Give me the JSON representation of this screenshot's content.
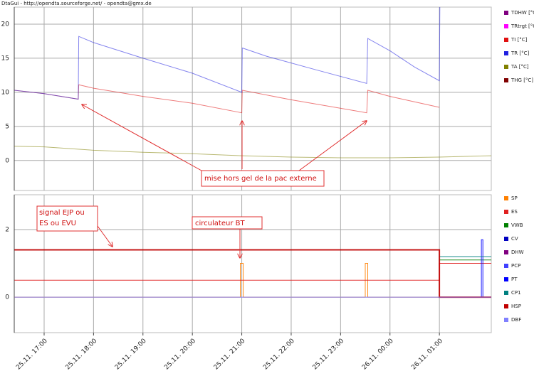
{
  "window_title": "DtaGui - http://opendta.sourceforge.net/ - opendta@gmx.de",
  "chart_data": [
    {
      "type": "line",
      "xlim": [
        16.395,
        26.05
      ],
      "xticks": [
        17,
        18,
        19,
        20,
        21,
        22,
        23,
        24,
        25
      ],
      "ylim": [
        -4.4,
        22.5
      ],
      "yticks": [
        0,
        5,
        10,
        15,
        20
      ],
      "grid": true,
      "series": [
        {
          "name": "TDHW [°C]",
          "color": "#800080",
          "x": [],
          "values": []
        },
        {
          "name": "TRtrgt [°C]",
          "color": "#ff00ff",
          "x": [],
          "values": []
        },
        {
          "name": "TI [°C]",
          "color": "#e01010",
          "x": [
            16.4,
            17,
            17.69,
            17.7,
            18,
            19,
            20,
            21,
            21.01,
            22,
            23.53,
            23.55,
            24,
            25
          ],
          "values": [
            10.3,
            9.8,
            9.0,
            11.1,
            10.6,
            9.4,
            8.4,
            7.0,
            10.3,
            8.9,
            7.0,
            10.3,
            9.4,
            7.8
          ]
        },
        {
          "name": "TR [°C]",
          "color": "#2020e0",
          "x": [
            16.4,
            17,
            17.69,
            17.7,
            18,
            19,
            20,
            21,
            21.01,
            21.5,
            22.5,
            23.53,
            23.55,
            24,
            24.5,
            25,
            25.01
          ],
          "values": [
            10.3,
            9.8,
            9.0,
            18.2,
            17.3,
            15.0,
            12.8,
            10.0,
            16.5,
            15.3,
            13.3,
            11.3,
            17.9,
            16.1,
            13.7,
            11.7,
            23
          ]
        },
        {
          "name": "TA [°C]",
          "color": "#808000",
          "x": [
            16.4,
            17,
            18,
            19,
            20,
            21,
            22,
            23,
            24,
            25,
            26.05
          ],
          "values": [
            2.1,
            2.0,
            1.5,
            1.2,
            1.0,
            0.7,
            0.5,
            0.4,
            0.4,
            0.5,
            0.7
          ]
        },
        {
          "name": "THG [°C]",
          "color": "#800000",
          "x": [],
          "values": []
        }
      ],
      "annotations": [
        {
          "text": "mise hors gel de la pac externe"
        }
      ]
    },
    {
      "type": "line",
      "xlim": [
        16.395,
        26.05
      ],
      "xticks": [
        {
          "value": 17,
          "label": "25.11. 17:00"
        },
        {
          "value": 18,
          "label": "25.11. 18:00"
        },
        {
          "value": 19,
          "label": "25.11. 19:00"
        },
        {
          "value": 20,
          "label": "25.11. 20:00"
        },
        {
          "value": 21,
          "label": "25.11. 21:00"
        },
        {
          "value": 22,
          "label": "25.11. 22:00"
        },
        {
          "value": 23,
          "label": "25.11. 23:00"
        },
        {
          "value": 24,
          "label": "26.11. 00:00"
        },
        {
          "value": 25,
          "label": "26.11. 01:00"
        }
      ],
      "ylim": [
        -1.05,
        3.03
      ],
      "yticks": [
        0,
        2
      ],
      "grid": true,
      "series": [
        {
          "name": "SP",
          "color": "#ff8000",
          "x": [
            16.4,
            20.97,
            20.97,
            21.03,
            21.03,
            23.5,
            23.5,
            23.55,
            23.55,
            26.05
          ],
          "values": [
            0,
            0,
            1,
            1,
            0,
            0,
            1,
            1,
            0,
            0
          ]
        },
        {
          "name": "ES",
          "color": "#e02020",
          "x": [
            16.4,
            25.0,
            25.0,
            26.05
          ],
          "values": [
            0.5,
            0.5,
            1.0,
            1.0
          ]
        },
        {
          "name": "VWB",
          "color": "#008000",
          "x": [
            25.0,
            26.05
          ],
          "values": [
            1.1,
            1.1
          ]
        },
        {
          "name": "CV",
          "color": "#0000c0",
          "x": [],
          "values": []
        },
        {
          "name": "DHW",
          "color": "#800080",
          "x": [],
          "values": []
        },
        {
          "name": "PCP",
          "color": "#4040ff",
          "x": [],
          "values": []
        },
        {
          "name": "PT",
          "color": "#0000ff",
          "x": [
            25.85,
            25.85,
            25.88,
            25.88
          ],
          "values": [
            0,
            1.7,
            1.7,
            0
          ]
        },
        {
          "name": "CP1",
          "color": "#008080",
          "x": [
            25.0,
            26.05
          ],
          "values": [
            1.2,
            1.2
          ]
        },
        {
          "name": "HSP",
          "color": "#c00000",
          "x": [
            16.4,
            25.0,
            25.0,
            26.05
          ],
          "values": [
            1.4,
            1.4,
            0,
            0
          ]
        },
        {
          "name": "DBF",
          "color": "#8080ff",
          "x": [
            16.4,
            26.05
          ],
          "values": [
            0,
            0
          ]
        }
      ],
      "annotations": [
        {
          "lines": [
            "signal EJP ou",
            "ES ou EVU"
          ]
        },
        {
          "text": "circulateur BT"
        }
      ]
    }
  ]
}
